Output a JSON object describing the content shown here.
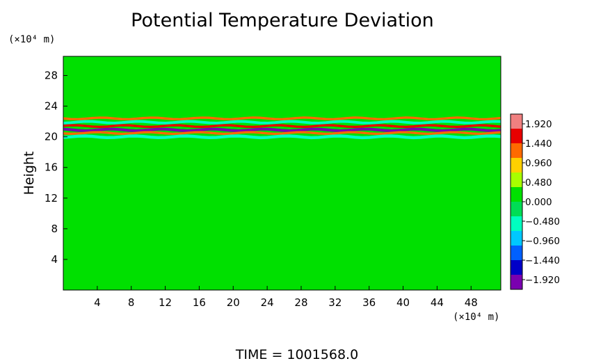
{
  "chart_data": {
    "type": "heatmap",
    "title": "Potential Temperature Deviation",
    "ylabel": "Height",
    "x_unit": "(×10⁴ m)",
    "y_unit": "(×10⁴ m)",
    "x_ticks": [
      4,
      8,
      12,
      16,
      20,
      24,
      28,
      32,
      36,
      40,
      44,
      48
    ],
    "y_ticks": [
      4,
      8,
      12,
      16,
      20,
      24,
      28
    ],
    "xlim": [
      0,
      51.5
    ],
    "ylim": [
      0,
      30.5
    ],
    "colorbar": {
      "labels": [
        "1.920",
        "1.440",
        "0.960",
        "0.480",
        "0.000",
        "-0.480",
        "-0.960",
        "-1.440",
        "-1.920"
      ],
      "range": [
        -2.16,
        2.16
      ],
      "colors": [
        "#f08080",
        "#e80000",
        "#ff6a00",
        "#ffd000",
        "#a8ff00",
        "#00e000",
        "#00dd55",
        "#00ffc0",
        "#00c8ff",
        "#0060ff",
        "#0000c8",
        "#7a00b0"
      ]
    },
    "features": [
      {
        "kind": "band",
        "y": 22.4,
        "value": 1.3,
        "thickness": 0.3
      },
      {
        "kind": "band",
        "y": 21.9,
        "value": -0.7,
        "thickness": 0.35
      },
      {
        "kind": "band",
        "y": 21.4,
        "value": 1.8,
        "thickness": 0.3
      },
      {
        "kind": "band",
        "y": 20.9,
        "value": -1.8,
        "thickness": 0.35
      },
      {
        "kind": "band",
        "y": 20.5,
        "value": 1.2,
        "thickness": 0.3
      },
      {
        "kind": "band",
        "y": 20.0,
        "value": -0.5,
        "thickness": 0.4
      }
    ],
    "background_value": 0.15,
    "footer": "TIME  =  1001568.0"
  }
}
